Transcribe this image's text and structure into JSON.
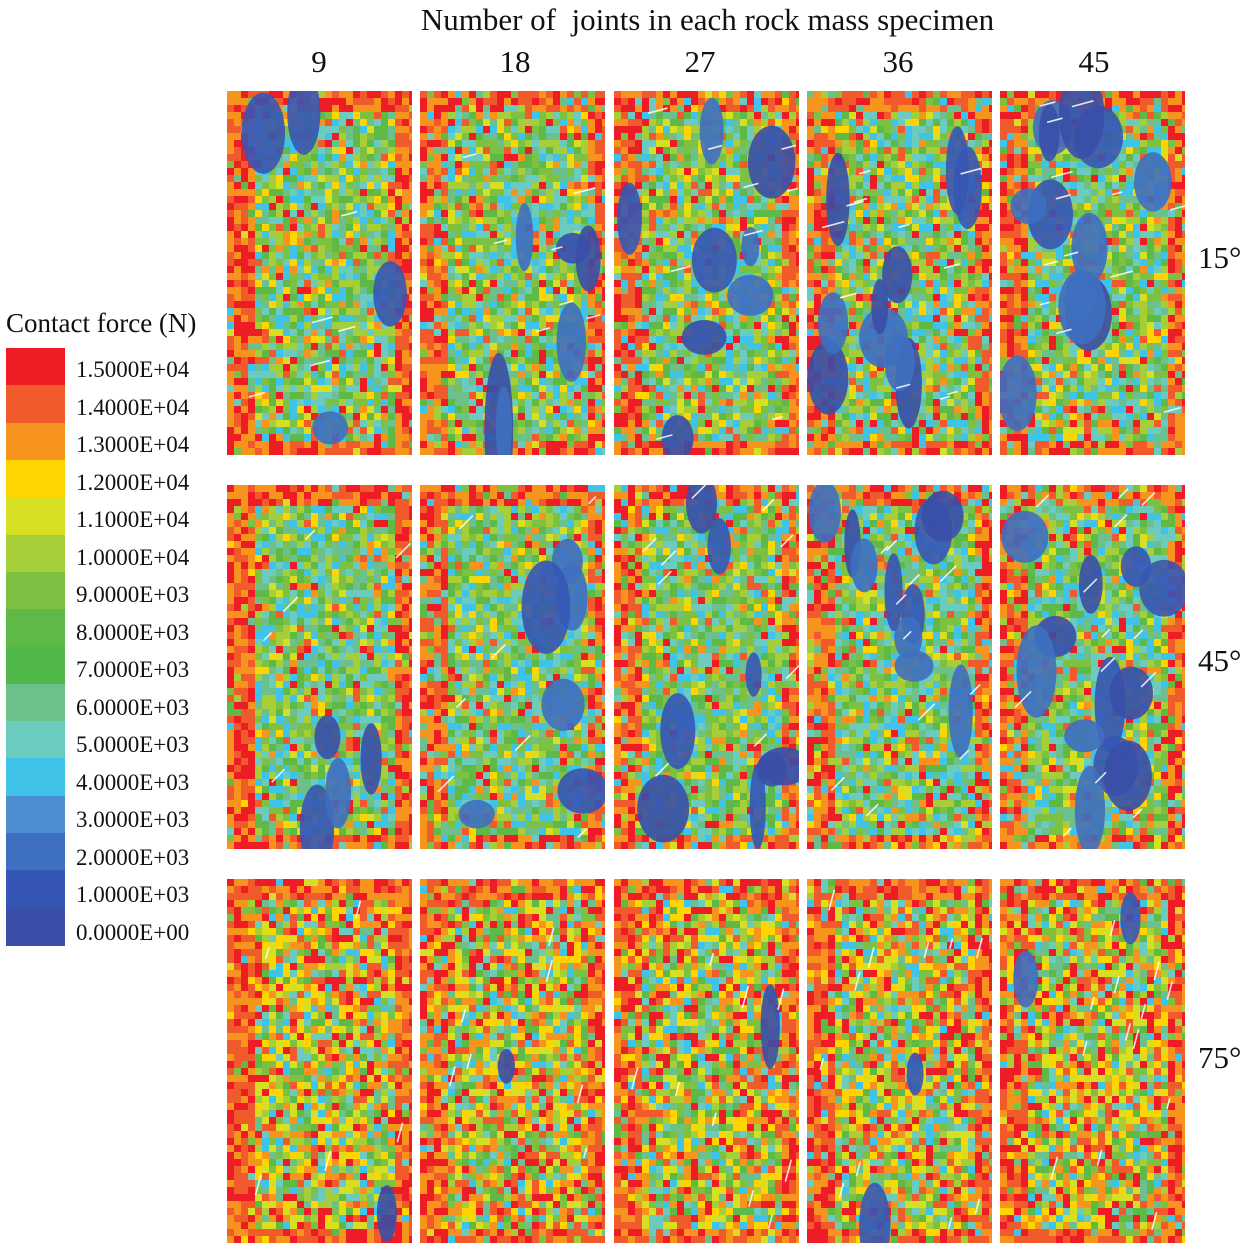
{
  "figure": {
    "header_title": "Number of  joints in each rock mass specimen",
    "columns": [
      "9",
      "18",
      "27",
      "36",
      "45"
    ],
    "rows": [
      "15°",
      "45°",
      "75°"
    ]
  },
  "legend": {
    "title": "Contact force (N)",
    "levels": [
      {
        "label": "1.5000E+04",
        "color": "#ee1c25"
      },
      {
        "label": "1.4000E+04",
        "color": "#f15a2b"
      },
      {
        "label": "1.3000E+04",
        "color": "#f7941d"
      },
      {
        "label": "1.2000E+04",
        "color": "#ffd400"
      },
      {
        "label": "1.1000E+04",
        "color": "#d7df23"
      },
      {
        "label": "1.0000E+04",
        "color": "#a6ce39"
      },
      {
        "label": "9.0000E+03",
        "color": "#7dc142"
      },
      {
        "label": "8.0000E+03",
        "color": "#5fb946"
      },
      {
        "label": "7.0000E+03",
        "color": "#4fb848"
      },
      {
        "label": "6.0000E+03",
        "color": "#6cc08b"
      },
      {
        "label": "5.0000E+03",
        "color": "#6ccbbf"
      },
      {
        "label": "4.0000E+03",
        "color": "#3fc3e8"
      },
      {
        "label": "3.0000E+03",
        "color": "#4a8ed1"
      },
      {
        "label": "2.0000E+03",
        "color": "#3f6fc0"
      },
      {
        "label": "1.0000E+03",
        "color": "#3656b5"
      },
      {
        "label": "0.0000E+00",
        "color": "#3a4fa8"
      }
    ]
  }
}
